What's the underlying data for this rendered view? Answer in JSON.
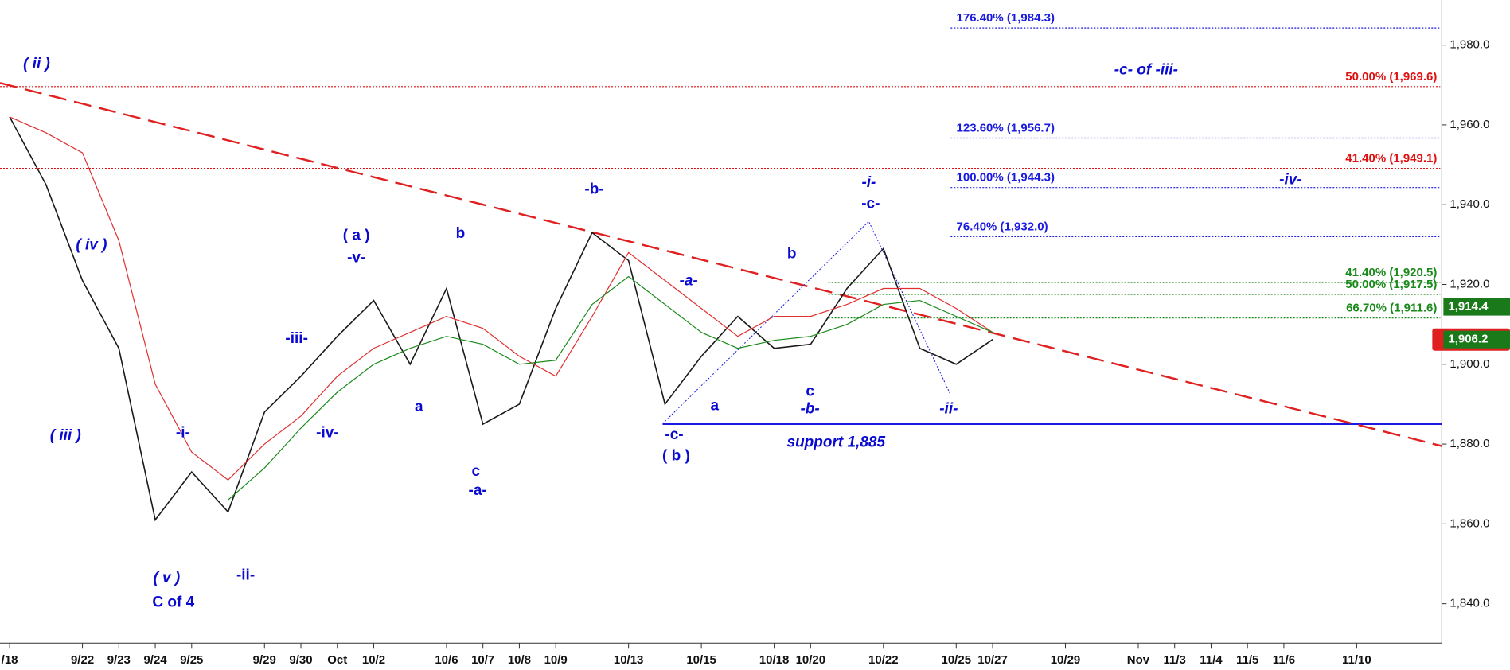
{
  "chart_data": {
    "type": "line",
    "categories": [
      "/18",
      null,
      "9/22",
      "9/23",
      "9/24",
      "9/25",
      null,
      "9/29",
      "9/30",
      "Oct",
      "10/2",
      null,
      "10/6",
      "10/7",
      "10/8",
      "10/9",
      null,
      "10/13",
      null,
      "10/15",
      null,
      "10/18",
      "10/20",
      null,
      "10/22",
      null,
      "10/25",
      "10/27",
      null,
      "10/29",
      null,
      "Nov",
      "11/3",
      "11/4",
      "11/5",
      "11/6",
      null,
      "11/10",
      null,
      null
    ],
    "series": [
      {
        "color": "#1a1a1a",
        "values": [
          1962,
          1945,
          1921,
          1904,
          1861,
          1873,
          1863,
          1888,
          1897,
          1907,
          1916,
          1900,
          1919,
          1885,
          1890,
          1914,
          1933,
          1926,
          1890,
          1902,
          1912,
          1904,
          1905,
          1919,
          1929,
          1904,
          1900,
          1906.2,
          null,
          null,
          null,
          null,
          null,
          null,
          null,
          null,
          null,
          null,
          null,
          null
        ]
      },
      {
        "color": "#e03030",
        "values": [
          1962,
          1958,
          1953,
          1931,
          1895,
          1878,
          1871,
          1880,
          1887,
          1897,
          1904,
          1908,
          1912,
          1909,
          1902,
          1897,
          1912,
          1928,
          1921,
          1914,
          1907,
          1912,
          1912,
          1915,
          1919,
          1919,
          1914,
          1908,
          null,
          null,
          null,
          null,
          null,
          null,
          null,
          null,
          null,
          null,
          null,
          null
        ]
      },
      {
        "color": "#1a8a1a",
        "values": [
          null,
          null,
          null,
          null,
          null,
          null,
          1866,
          1874,
          1884,
          1893,
          1900,
          1904,
          1907,
          1905,
          1900,
          1901,
          1915,
          1922,
          1915,
          1908,
          1904,
          1906,
          1907,
          1910,
          1915,
          1916,
          1912,
          1908,
          null,
          null,
          null,
          null,
          null,
          null,
          null,
          null,
          null,
          null,
          null,
          null
        ]
      }
    ],
    "ylim": [
      1830.1,
      1991.3
    ],
    "yticks": [
      {
        "value": 1840,
        "label": "1,840.0"
      },
      {
        "value": 1860,
        "label": "1,860.0"
      },
      {
        "value": 1880,
        "label": "1,880.0"
      },
      {
        "value": 1900,
        "label": "1,900.0"
      },
      {
        "value": 1920,
        "label": "1,920.0"
      },
      {
        "value": 1940,
        "label": "1,940.0"
      },
      {
        "value": 1960,
        "label": "1,960.0"
      },
      {
        "value": 1980,
        "label": "1,980.0"
      }
    ],
    "trendline": {
      "color": "#e02020",
      "start": 1970.5,
      "end": 1879.5
    },
    "support": {
      "value": 1885,
      "label": "support 1,885",
      "color": "#1a1ae0"
    },
    "levels": [
      {
        "value": 1984.3,
        "label": "176.40% (1,984.3)",
        "color": "#1a1ae0"
      },
      {
        "value": 1969.6,
        "label": "50.00% (1,969.6)",
        "color": "#e01010"
      },
      {
        "value": 1956.7,
        "label": "123.60% (1,956.7)",
        "color": "#1a1ae0"
      },
      {
        "value": 1949.1,
        "label": "41.40% (1,949.1)",
        "color": "#e01010"
      },
      {
        "value": 1944.3,
        "label": "100.00% (1,944.3)",
        "color": "#1a1ae0"
      },
      {
        "value": 1932.0,
        "label": "76.40% (1,932.0)",
        "color": "#1a1ae0"
      },
      {
        "value": 1920.5,
        "label": "41.40% (1,920.5)",
        "color": "#1a8a1a"
      },
      {
        "value": 1917.5,
        "label": "50.00% (1,917.5)",
        "color": "#1a8a1a"
      },
      {
        "value": 1911.6,
        "label": "66.70% (1,911.6)",
        "color": "#1a8a1a"
      }
    ],
    "price_tags": [
      {
        "value": 1914.4,
        "label": "1,914.4"
      },
      {
        "value": 1906.2,
        "label": "1,906.2"
      }
    ],
    "annotations": [
      "( ii )",
      "( iv )",
      "( iii )",
      "( v )",
      "C of 4",
      "-i-",
      "-ii-",
      "-iii-",
      "-iv-",
      "( a )",
      "-v-",
      "a",
      "b",
      "c",
      "-a-",
      "-b-",
      "-a-",
      "a",
      "-c-",
      "( b )",
      "b",
      "c",
      "-b-",
      "-i-",
      "-c-",
      "-ii-",
      "-c- of -iii-",
      "-iv-"
    ]
  }
}
